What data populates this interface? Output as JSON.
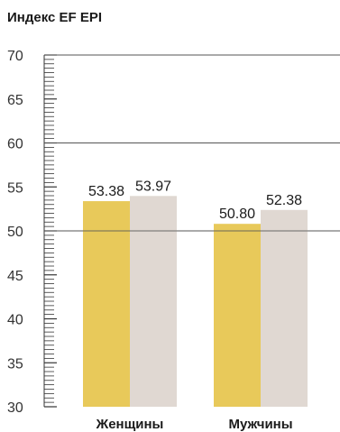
{
  "chart_data": {
    "type": "bar",
    "title": "Индекс EF EPI",
    "categories": [
      "Женщины",
      "Мужчины"
    ],
    "series": [
      {
        "values": [
          53.38,
          50.8
        ],
        "labels": [
          "53.38",
          "50.80"
        ],
        "color": "#e8c95a"
      },
      {
        "values": [
          53.97,
          52.38
        ],
        "labels": [
          "53.97",
          "52.38"
        ],
        "color": "#e0d8d2"
      }
    ],
    "ylim": [
      30,
      70
    ],
    "y_ticks": [
      30,
      35,
      40,
      45,
      50,
      55,
      60,
      65,
      70
    ],
    "y_tick_labels": [
      "30",
      "35",
      "40",
      "45",
      "50",
      "55",
      "60",
      "65",
      "70"
    ],
    "major_gridlines": [
      50,
      60,
      70
    ],
    "minor_tick_step": 0.5,
    "grid": true,
    "legend": "none",
    "colors": {
      "gridline": "#555555",
      "axis": "#333333"
    }
  }
}
